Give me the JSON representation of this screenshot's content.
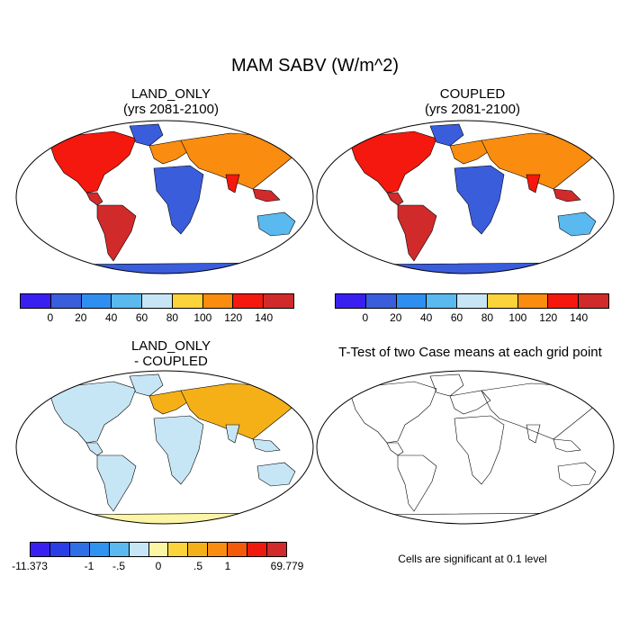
{
  "title": "MAM SABV (W/m^2)",
  "panels": {
    "tl": {
      "title_line1": "LAND_ONLY",
      "title_line2": "(yrs 2081-2100)"
    },
    "tr": {
      "title_line1": "COUPLED",
      "title_line2": "(yrs 2081-2100)"
    },
    "bl": {
      "title_line1": "LAND_ONLY",
      "title_line2": "- COUPLED"
    },
    "br": {
      "title_line1": "T-Test of two Case means at each grid point"
    }
  },
  "colorbar_main": {
    "colors": [
      "#3a20f0",
      "#3a5ddc",
      "#2f8ff0",
      "#5ab9ee",
      "#c7e6f5",
      "#fbd33a",
      "#fa8c0f",
      "#f4180e",
      "#d12a2a"
    ],
    "labels": [
      "0",
      "20",
      "40",
      "60",
      "80",
      "100",
      "120",
      "140"
    ]
  },
  "colorbar_diff": {
    "colors": [
      "#3a20f0",
      "#2a3ee8",
      "#2f6fe6",
      "#2f93ef",
      "#5ab9ee",
      "#c7e6f5",
      "#fdf5a6",
      "#fbd33a",
      "#f5b018",
      "#fa8c0f",
      "#f45a0a",
      "#ef1a0b",
      "#d12a2a"
    ],
    "labels": [
      "-11.373",
      "-1",
      "-.5",
      "0",
      ".5",
      "1",
      "69.779"
    ]
  },
  "significance_note": "Cells are significant at 0.1 level"
}
